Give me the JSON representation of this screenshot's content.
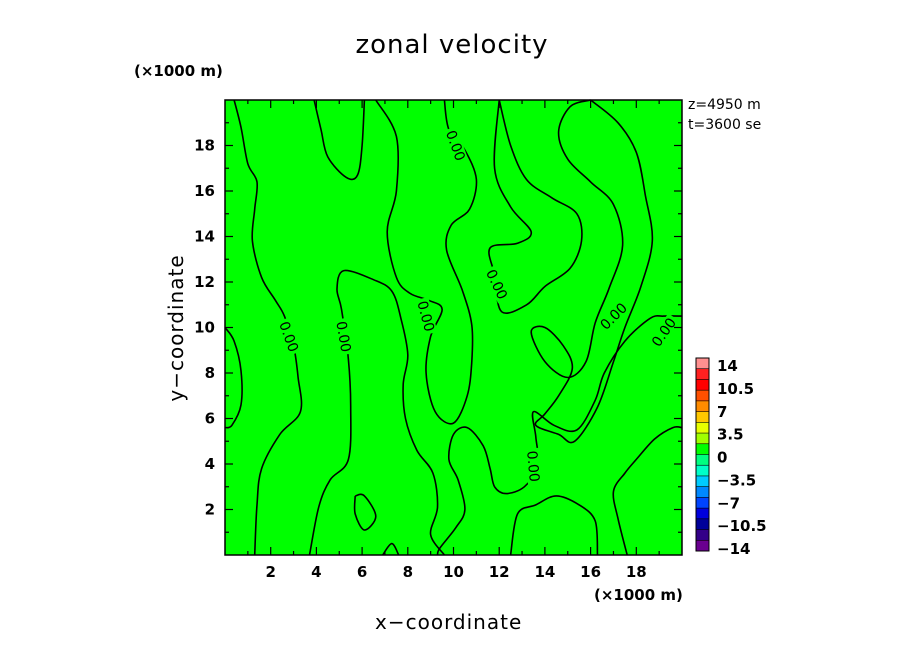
{
  "chart_data": {
    "type": "contour",
    "title": "zonal velocity",
    "xlabel": "x−coordinate",
    "ylabel": "y−coordinate",
    "x_unit": "(×1000 m)",
    "y_unit": "(×1000 m)",
    "xlim": [
      0,
      20
    ],
    "ylim": [
      0,
      20
    ],
    "x_ticks": [
      "2",
      "4",
      "6",
      "8",
      "10",
      "12",
      "14",
      "16",
      "18"
    ],
    "y_ticks": [
      "2",
      "4",
      "6",
      "8",
      "10",
      "12",
      "14",
      "16",
      "18"
    ],
    "annotations": [
      "z=4950  m",
      "t=3600  se"
    ],
    "contour_label": "0.00",
    "field_color": "#00ff00",
    "colorbar": {
      "labels": [
        "14",
        "10.5",
        "7",
        "3.5",
        "0",
        "−3.5",
        "−7",
        "−10.5",
        "−14"
      ],
      "levels_top_to_bottom": [
        14,
        12.25,
        10.5,
        8.75,
        7,
        5.25,
        3.5,
        1.75,
        0,
        -1.75,
        -3.5,
        -5.25,
        -7,
        -8.75,
        -10.5,
        -12.25
      ],
      "colors": [
        "#ff9090",
        "#ff2020",
        "#ff0000",
        "#ff5000",
        "#ff8c00",
        "#ffc800",
        "#e8ff00",
        "#a0ff00",
        "#00ff00",
        "#00ff80",
        "#00ffc8",
        "#00ccff",
        "#0088ff",
        "#0044ff",
        "#0000dd",
        "#000099",
        "#330088",
        "#6a0090"
      ]
    },
    "contours_zero_level": [
      [
        [
          0.0,
          10.0
        ],
        [
          0.4,
          9.4
        ],
        [
          0.7,
          8.1
        ],
        [
          0.7,
          6.6
        ],
        [
          0.3,
          5.7
        ],
        [
          0.0,
          5.6
        ]
      ],
      [
        [
          0.4,
          20.0
        ],
        [
          0.7,
          18.8
        ],
        [
          1.0,
          17.2
        ],
        [
          1.4,
          16.4
        ],
        [
          1.3,
          15.2
        ],
        [
          1.2,
          13.8
        ],
        [
          1.6,
          12.2
        ],
        [
          2.2,
          11.2
        ],
        [
          2.6,
          10.5
        ],
        [
          3.0,
          9.2
        ],
        [
          3.2,
          7.8
        ],
        [
          3.3,
          6.3
        ],
        [
          2.4,
          5.3
        ],
        [
          1.6,
          3.8
        ],
        [
          1.4,
          2.2
        ],
        [
          1.3,
          0.0
        ]
      ],
      [
        [
          3.9,
          20.0
        ],
        [
          4.2,
          18.7
        ],
        [
          4.5,
          17.5
        ],
        [
          5.3,
          16.6
        ],
        [
          5.8,
          16.7
        ],
        [
          6.0,
          18.0
        ],
        [
          6.1,
          20.0
        ]
      ],
      [
        [
          3.7,
          0.0
        ],
        [
          4.1,
          2.1
        ],
        [
          4.6,
          3.3
        ],
        [
          5.4,
          4.2
        ],
        [
          5.5,
          6.5
        ],
        [
          5.4,
          8.6
        ],
        [
          5.1,
          10.8
        ],
        [
          4.9,
          11.7
        ],
        [
          5.2,
          12.5
        ],
        [
          6.5,
          12.1
        ],
        [
          7.3,
          11.6
        ],
        [
          7.7,
          10.4
        ],
        [
          8.0,
          8.8
        ],
        [
          7.8,
          7.5
        ],
        [
          7.9,
          6.0
        ],
        [
          8.4,
          4.6
        ],
        [
          9.1,
          3.6
        ],
        [
          9.3,
          2.1
        ],
        [
          9.0,
          0.9
        ],
        [
          9.6,
          0.0
        ]
      ],
      [
        [
          5.7,
          2.6
        ],
        [
          6.1,
          2.6
        ],
        [
          6.6,
          1.7
        ],
        [
          6.1,
          1.1
        ],
        [
          5.7,
          1.8
        ],
        [
          5.7,
          2.6
        ]
      ],
      [
        [
          6.9,
          0.0
        ],
        [
          7.3,
          0.5
        ],
        [
          7.6,
          0.0
        ]
      ],
      [
        [
          6.6,
          20.0
        ],
        [
          7.5,
          18.4
        ],
        [
          7.5,
          16.0
        ],
        [
          7.1,
          14.2
        ],
        [
          7.5,
          12.2
        ],
        [
          8.1,
          11.5
        ],
        [
          8.9,
          11.2
        ],
        [
          9.5,
          10.8
        ],
        [
          9.0,
          9.6
        ],
        [
          8.8,
          8.0
        ],
        [
          9.2,
          6.3
        ],
        [
          10.0,
          5.8
        ],
        [
          10.6,
          7.0
        ],
        [
          10.8,
          8.5
        ],
        [
          10.8,
          10.1
        ],
        [
          10.4,
          11.6
        ],
        [
          9.7,
          13.4
        ],
        [
          9.9,
          14.5
        ],
        [
          10.7,
          15.2
        ],
        [
          11.0,
          16.5
        ],
        [
          10.5,
          17.8
        ],
        [
          9.8,
          18.7
        ],
        [
          9.6,
          20.0
        ]
      ],
      [
        [
          12.0,
          20.0
        ],
        [
          12.5,
          18.0
        ],
        [
          13.2,
          16.5
        ],
        [
          14.3,
          15.7
        ],
        [
          15.4,
          15.0
        ],
        [
          15.6,
          13.8
        ],
        [
          15.1,
          12.6
        ],
        [
          14.0,
          11.8
        ],
        [
          13.2,
          11.0
        ],
        [
          12.1,
          10.7
        ],
        [
          11.8,
          12.3
        ],
        [
          11.6,
          13.5
        ],
        [
          12.8,
          13.7
        ],
        [
          13.4,
          14.2
        ],
        [
          12.5,
          15.3
        ],
        [
          11.8,
          17.0
        ],
        [
          12.0,
          20.0
        ]
      ],
      [
        [
          16.0,
          20.0
        ],
        [
          15.1,
          19.7
        ],
        [
          14.6,
          18.6
        ],
        [
          15.0,
          17.4
        ],
        [
          16.0,
          16.4
        ],
        [
          17.0,
          15.4
        ],
        [
          17.4,
          13.6
        ],
        [
          16.8,
          11.7
        ],
        [
          16.2,
          10.2
        ],
        [
          15.8,
          8.5
        ],
        [
          15.0,
          7.8
        ],
        [
          14.0,
          8.5
        ],
        [
          13.4,
          9.8
        ],
        [
          14.0,
          10.0
        ],
        [
          14.8,
          9.2
        ],
        [
          15.2,
          8.2
        ],
        [
          14.6,
          7.0
        ],
        [
          14.0,
          6.2
        ],
        [
          13.6,
          5.7
        ],
        [
          14.6,
          5.3
        ],
        [
          15.3,
          5.0
        ],
        [
          16.3,
          6.5
        ],
        [
          17.0,
          8.5
        ],
        [
          17.5,
          10.0
        ],
        [
          18.2,
          11.8
        ],
        [
          18.7,
          13.8
        ],
        [
          18.4,
          15.8
        ],
        [
          18.0,
          17.7
        ],
        [
          17.2,
          19.0
        ],
        [
          16.0,
          20.0
        ]
      ],
      [
        [
          20.0,
          10.5
        ],
        [
          19.2,
          10.5
        ],
        [
          18.6,
          10.4
        ],
        [
          17.5,
          9.4
        ],
        [
          16.6,
          8.0
        ],
        [
          16.2,
          6.8
        ],
        [
          15.4,
          5.5
        ],
        [
          14.4,
          5.7
        ],
        [
          13.5,
          6.3
        ],
        [
          13.6,
          5.2
        ],
        [
          13.7,
          3.9
        ],
        [
          13.1,
          3.0
        ],
        [
          12.3,
          2.7
        ],
        [
          11.8,
          3.0
        ],
        [
          11.6,
          3.8
        ],
        [
          11.3,
          4.8
        ],
        [
          10.6,
          5.6
        ],
        [
          10.0,
          5.3
        ],
        [
          9.8,
          4.2
        ],
        [
          10.2,
          3.3
        ],
        [
          10.5,
          2.0
        ],
        [
          10.1,
          1.2
        ],
        [
          9.4,
          0.3
        ],
        [
          9.3,
          0.0
        ]
      ],
      [
        [
          12.5,
          0.0
        ],
        [
          12.8,
          1.8
        ],
        [
          13.6,
          2.2
        ],
        [
          14.5,
          2.6
        ],
        [
          15.5,
          2.2
        ],
        [
          16.2,
          1.5
        ],
        [
          16.3,
          0.0
        ]
      ],
      [
        [
          17.6,
          0.0
        ],
        [
          17.2,
          1.6
        ],
        [
          17.0,
          2.8
        ],
        [
          17.5,
          3.6
        ],
        [
          18.0,
          4.2
        ],
        [
          18.8,
          5.1
        ],
        [
          19.6,
          5.6
        ],
        [
          20.0,
          5.6
        ]
      ]
    ],
    "contour_label_positions": [
      [
        2.8,
        9.6,
        70
      ],
      [
        5.2,
        9.6,
        80
      ],
      [
        8.8,
        10.5,
        75
      ],
      [
        10.1,
        18.0,
        70
      ],
      [
        11.9,
        11.9,
        65
      ],
      [
        13.5,
        3.9,
        85
      ],
      [
        17.0,
        10.5,
        -45
      ],
      [
        19.2,
        9.8,
        -55
      ]
    ]
  }
}
